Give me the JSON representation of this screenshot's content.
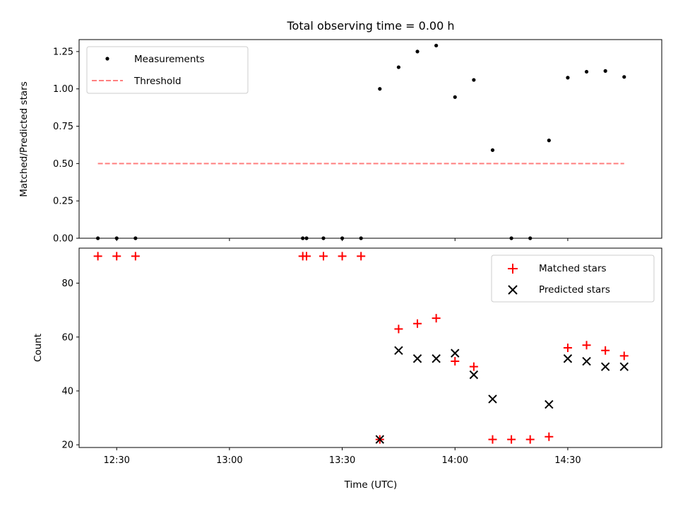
{
  "chart_data": [
    {
      "type": "scatter",
      "title": "Total observing time = 0.00 h",
      "xlabel": "",
      "ylabel": "Matched/Predicted stars",
      "xlim": [
        "12:20",
        "14:55"
      ],
      "ylim": [
        0,
        1.33
      ],
      "yticks": [
        0.0,
        0.25,
        0.5,
        0.75,
        1.0,
        1.25
      ],
      "ytick_labels": [
        "0.00",
        "0.25",
        "0.50",
        "0.75",
        "1.00",
        "1.25"
      ],
      "legend_position": "top-left",
      "series": [
        {
          "name": "Measurements",
          "kind": "scatter",
          "marker": "dot",
          "color": "#000000",
          "points": [
            [
              "12:25",
              0.0
            ],
            [
              "12:30",
              0.0
            ],
            [
              "12:35",
              0.0
            ],
            [
              "13:19.5",
              0.0
            ],
            [
              "13:20.5",
              0.0
            ],
            [
              "13:25",
              0.0
            ],
            [
              "13:30",
              0.0
            ],
            [
              "13:35",
              0.0
            ],
            [
              "13:40",
              1.0
            ],
            [
              "13:45",
              1.145
            ],
            [
              "13:50",
              1.25
            ],
            [
              "13:55",
              1.29
            ],
            [
              "14:00",
              0.945
            ],
            [
              "14:05",
              1.06
            ],
            [
              "14:10",
              0.59
            ],
            [
              "14:15",
              0.0
            ],
            [
              "14:20",
              0.0
            ],
            [
              "14:25",
              0.655
            ],
            [
              "14:30",
              1.075
            ],
            [
              "14:35",
              1.115
            ],
            [
              "14:40",
              1.12
            ],
            [
              "14:45",
              1.08
            ]
          ]
        },
        {
          "name": "Threshold",
          "kind": "line",
          "linestyle": "dashed",
          "color": "#ff7f7f",
          "points": [
            [
              "12:25",
              0.5
            ],
            [
              "14:45",
              0.5
            ]
          ]
        }
      ]
    },
    {
      "type": "scatter",
      "title": "",
      "xlabel": "Time (UTC)",
      "ylabel": "Count",
      "xlim": [
        "12:20",
        "14:55"
      ],
      "ylim": [
        19,
        93
      ],
      "xticks": [
        "12:30",
        "13:00",
        "13:30",
        "14:00",
        "14:30"
      ],
      "yticks": [
        20,
        40,
        60,
        80
      ],
      "legend_position": "top-right",
      "series": [
        {
          "name": "Matched stars",
          "marker": "plus",
          "color": "#ff0000",
          "points": [
            [
              "12:25",
              90
            ],
            [
              "12:30",
              90
            ],
            [
              "12:35",
              90
            ],
            [
              "13:19.5",
              90
            ],
            [
              "13:20.5",
              90
            ],
            [
              "13:25",
              90
            ],
            [
              "13:30",
              90
            ],
            [
              "13:35",
              90
            ],
            [
              "13:40",
              22
            ],
            [
              "13:45",
              63
            ],
            [
              "13:50",
              65
            ],
            [
              "13:55",
              67
            ],
            [
              "14:00",
              51
            ],
            [
              "14:05",
              49
            ],
            [
              "14:10",
              22
            ],
            [
              "14:15",
              22
            ],
            [
              "14:20",
              22
            ],
            [
              "14:25",
              23
            ],
            [
              "14:30",
              56
            ],
            [
              "14:35",
              57
            ],
            [
              "14:40",
              55
            ],
            [
              "14:45",
              53
            ]
          ]
        },
        {
          "name": "Predicted stars",
          "marker": "x",
          "color": "#000000",
          "points": [
            [
              "13:40",
              22
            ],
            [
              "13:45",
              55
            ],
            [
              "13:50",
              52
            ],
            [
              "13:55",
              52
            ],
            [
              "14:00",
              54
            ],
            [
              "14:05",
              46
            ],
            [
              "14:10",
              37
            ],
            [
              "14:25",
              35
            ],
            [
              "14:30",
              52
            ],
            [
              "14:35",
              51
            ],
            [
              "14:40",
              49
            ],
            [
              "14:45",
              49
            ]
          ]
        }
      ]
    }
  ]
}
